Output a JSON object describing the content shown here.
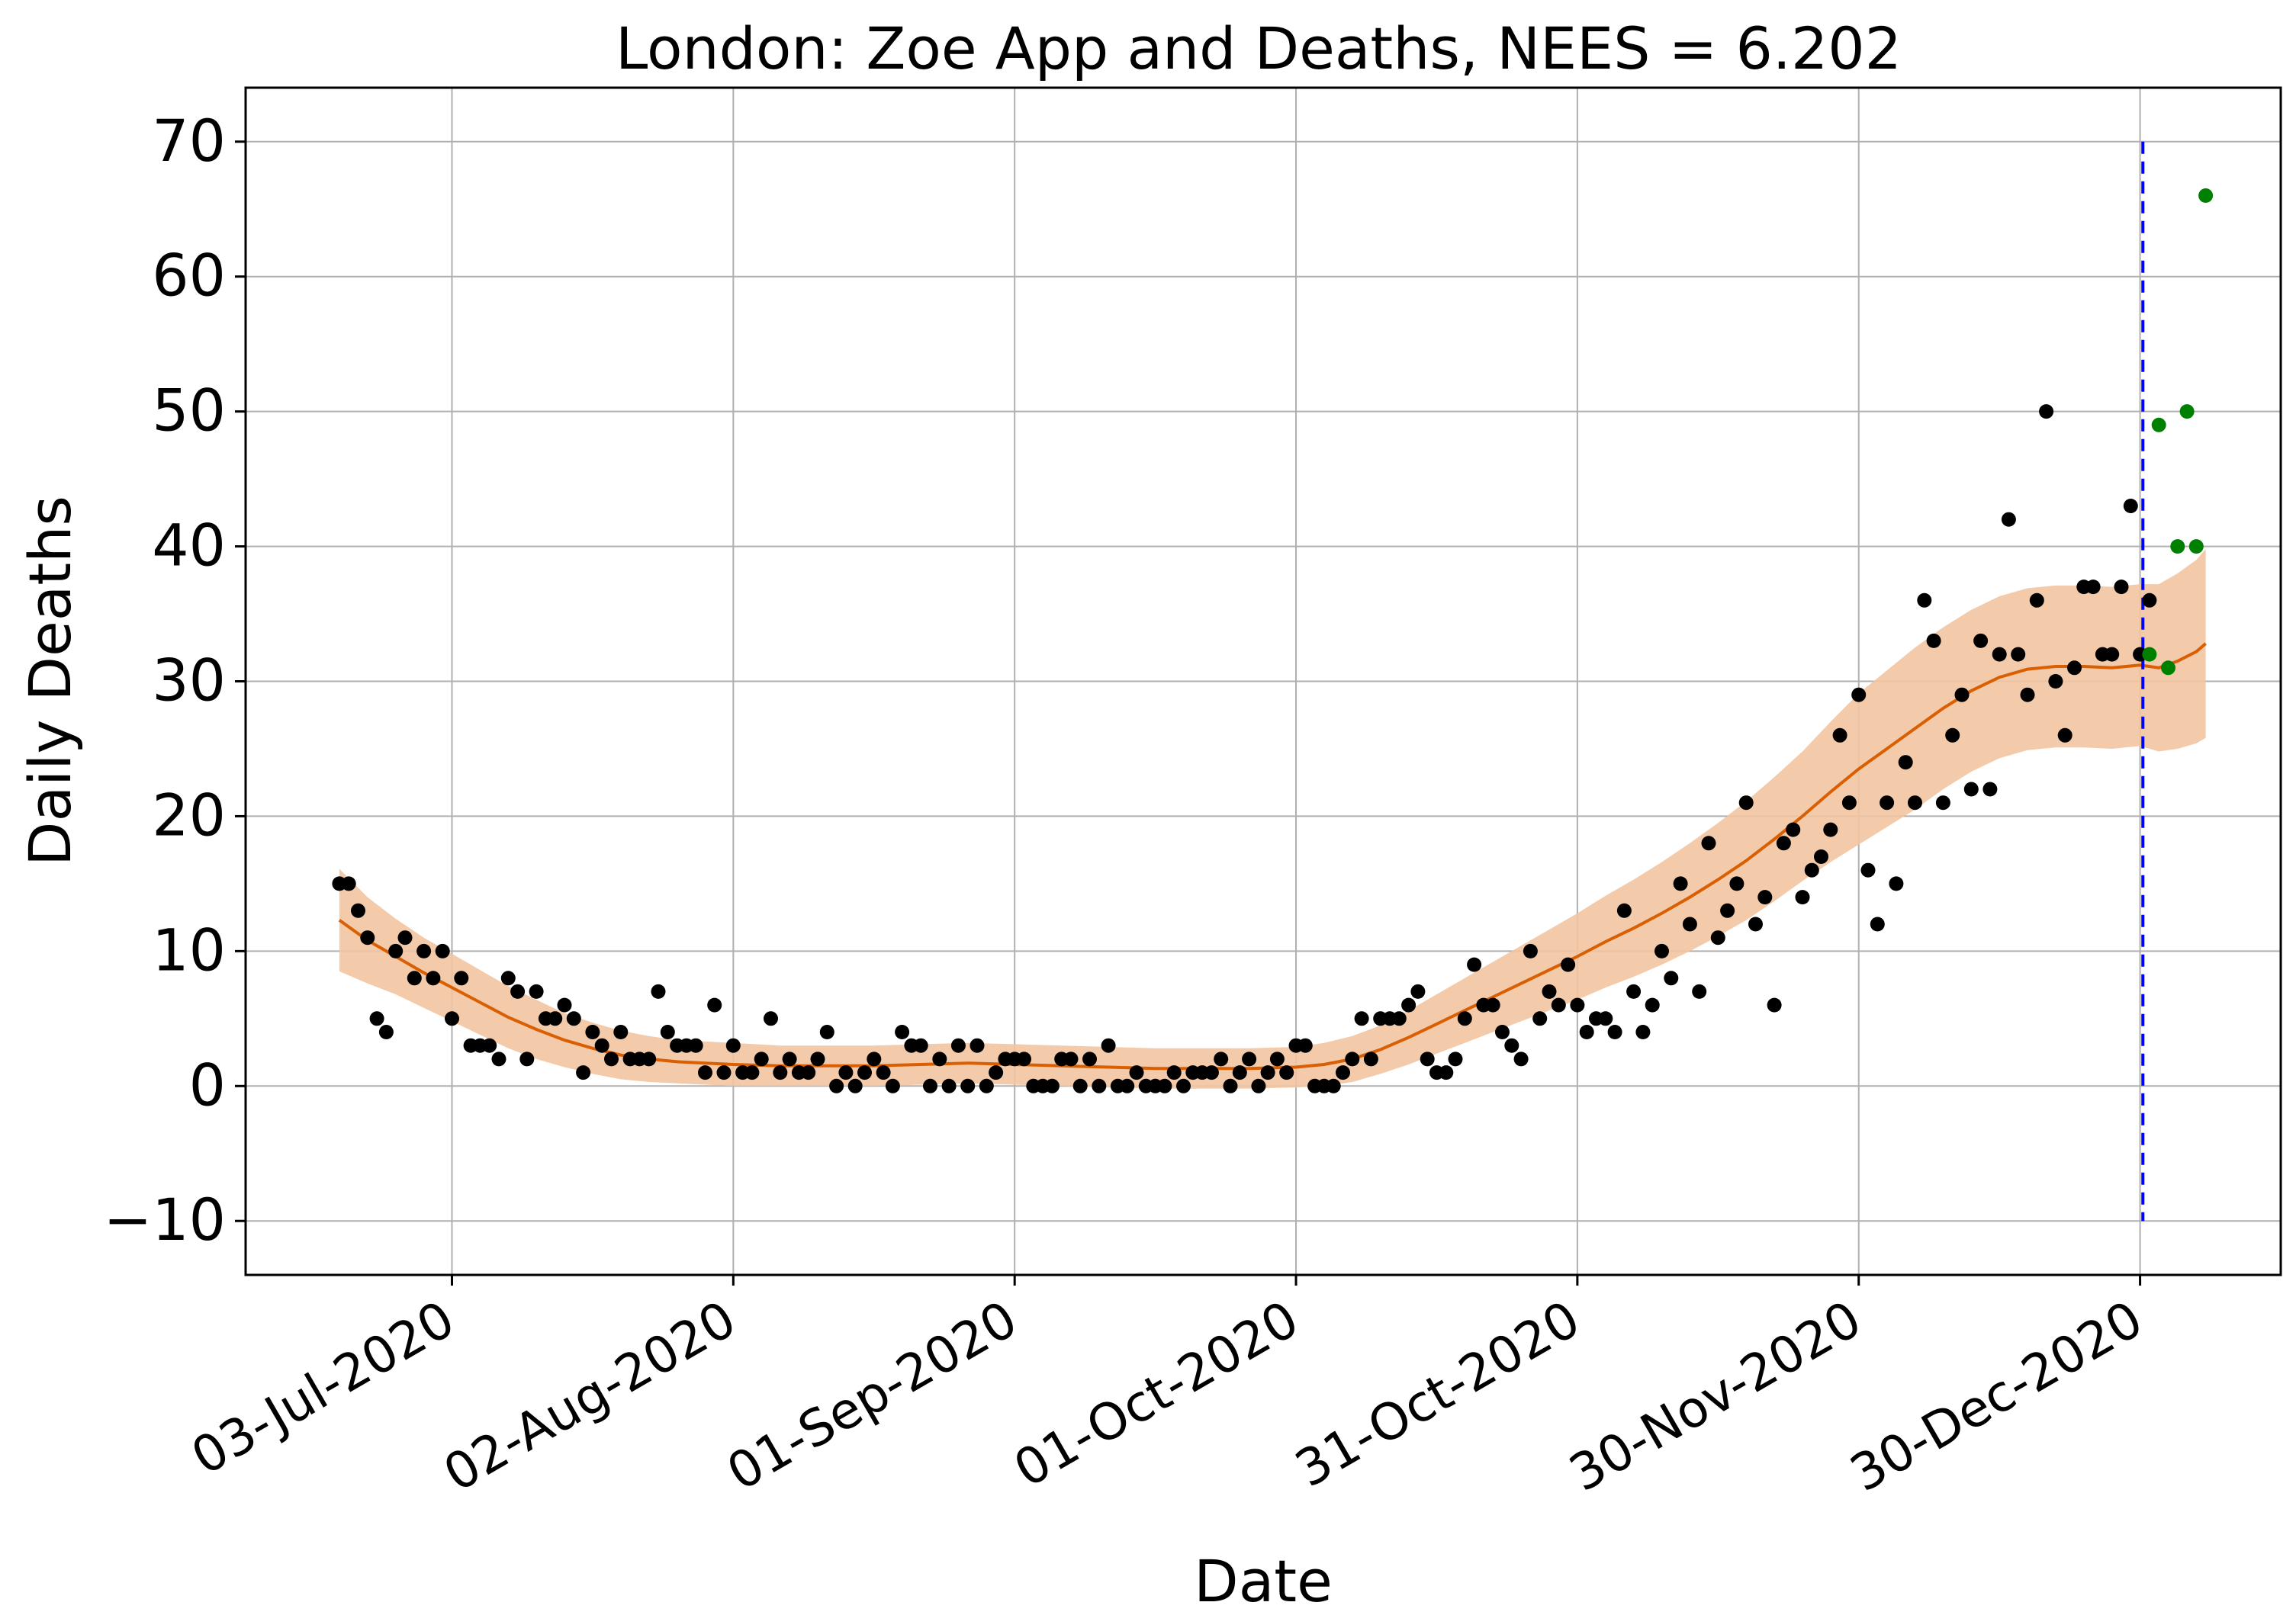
{
  "chart_data": {
    "type": "scatter",
    "title": "London: Zoe App and Deaths, NEES = 6.202",
    "xlabel": "Date",
    "ylabel": "Daily Deaths",
    "xlim": [
      -22,
      195
    ],
    "ylim": [
      -14,
      74
    ],
    "grid": true,
    "x_unit": "days since 03-Jul-2020",
    "x_ticks": [
      {
        "value": 0,
        "label": "03-Jul-2020"
      },
      {
        "value": 30,
        "label": "02-Aug-2020"
      },
      {
        "value": 60,
        "label": "01-Sep-2020"
      },
      {
        "value": 90,
        "label": "01-Oct-2020"
      },
      {
        "value": 120,
        "label": "31-Oct-2020"
      },
      {
        "value": 150,
        "label": "30-Nov-2020"
      },
      {
        "value": 180,
        "label": "30-Dec-2020"
      }
    ],
    "y_ticks": [
      {
        "value": -10,
        "label": "−10"
      },
      {
        "value": 0,
        "label": "0"
      },
      {
        "value": 10,
        "label": "10"
      },
      {
        "value": 20,
        "label": "20"
      },
      {
        "value": 30,
        "label": "30"
      },
      {
        "value": 40,
        "label": "40"
      },
      {
        "value": 50,
        "label": "50"
      },
      {
        "value": 60,
        "label": "60"
      },
      {
        "value": 70,
        "label": "70"
      }
    ],
    "colors": {
      "observed": "#000000",
      "future": "#008000",
      "estimate": "#d95f02",
      "band": "#f2c4a1",
      "forecast_line": "#0000ff",
      "grid": "#b0b0b0"
    },
    "forecast_start_x": 180.3,
    "forecast_line_range": [
      -10,
      70
    ],
    "observed": [
      [
        -12,
        15
      ],
      [
        -11,
        15
      ],
      [
        -10,
        13
      ],
      [
        -9,
        11
      ],
      [
        -8,
        5
      ],
      [
        -7,
        4
      ],
      [
        -6,
        10
      ],
      [
        -5,
        11
      ],
      [
        -4,
        8
      ],
      [
        -3,
        10
      ],
      [
        -2,
        8
      ],
      [
        -1,
        10
      ],
      [
        0,
        5
      ],
      [
        1,
        8
      ],
      [
        2,
        3
      ],
      [
        3,
        3
      ],
      [
        4,
        3
      ],
      [
        5,
        2
      ],
      [
        6,
        8
      ],
      [
        7,
        7
      ],
      [
        8,
        2
      ],
      [
        9,
        7
      ],
      [
        10,
        5
      ],
      [
        11,
        5
      ],
      [
        12,
        6
      ],
      [
        13,
        5
      ],
      [
        14,
        1
      ],
      [
        15,
        4
      ],
      [
        16,
        3
      ],
      [
        17,
        2
      ],
      [
        18,
        4
      ],
      [
        19,
        2
      ],
      [
        20,
        2
      ],
      [
        21,
        2
      ],
      [
        22,
        7
      ],
      [
        23,
        4
      ],
      [
        24,
        3
      ],
      [
        25,
        3
      ],
      [
        26,
        3
      ],
      [
        27,
        1
      ],
      [
        28,
        6
      ],
      [
        29,
        1
      ],
      [
        30,
        3
      ],
      [
        31,
        1
      ],
      [
        32,
        1
      ],
      [
        33,
        2
      ],
      [
        34,
        5
      ],
      [
        35,
        1
      ],
      [
        36,
        2
      ],
      [
        37,
        1
      ],
      [
        38,
        1
      ],
      [
        39,
        2
      ],
      [
        40,
        4
      ],
      [
        41,
        0
      ],
      [
        42,
        1
      ],
      [
        43,
        0
      ],
      [
        44,
        1
      ],
      [
        45,
        2
      ],
      [
        46,
        1
      ],
      [
        47,
        0
      ],
      [
        48,
        4
      ],
      [
        49,
        3
      ],
      [
        50,
        3
      ],
      [
        51,
        0
      ],
      [
        52,
        2
      ],
      [
        53,
        0
      ],
      [
        54,
        3
      ],
      [
        55,
        0
      ],
      [
        56,
        3
      ],
      [
        57,
        0
      ],
      [
        58,
        1
      ],
      [
        59,
        2
      ],
      [
        60,
        2
      ],
      [
        61,
        2
      ],
      [
        62,
        0
      ],
      [
        63,
        0
      ],
      [
        64,
        0
      ],
      [
        65,
        2
      ],
      [
        66,
        2
      ],
      [
        67,
        0
      ],
      [
        68,
        2
      ],
      [
        69,
        0
      ],
      [
        70,
        3
      ],
      [
        71,
        0
      ],
      [
        72,
        0
      ],
      [
        73,
        1
      ],
      [
        74,
        0
      ],
      [
        75,
        0
      ],
      [
        76,
        0
      ],
      [
        77,
        1
      ],
      [
        78,
        0
      ],
      [
        79,
        1
      ],
      [
        80,
        1
      ],
      [
        81,
        1
      ],
      [
        82,
        2
      ],
      [
        83,
        0
      ],
      [
        84,
        1
      ],
      [
        85,
        2
      ],
      [
        86,
        0
      ],
      [
        87,
        1
      ],
      [
        88,
        2
      ],
      [
        89,
        1
      ],
      [
        90,
        3
      ],
      [
        91,
        3
      ],
      [
        92,
        0
      ],
      [
        93,
        0
      ],
      [
        94,
        0
      ],
      [
        95,
        1
      ],
      [
        96,
        2
      ],
      [
        97,
        5
      ],
      [
        98,
        2
      ],
      [
        99,
        5
      ],
      [
        100,
        5
      ],
      [
        101,
        5
      ],
      [
        102,
        6
      ],
      [
        103,
        7
      ],
      [
        104,
        2
      ],
      [
        105,
        1
      ],
      [
        106,
        1
      ],
      [
        107,
        2
      ],
      [
        108,
        5
      ],
      [
        109,
        9
      ],
      [
        110,
        6
      ],
      [
        111,
        6
      ],
      [
        112,
        4
      ],
      [
        113,
        3
      ],
      [
        114,
        2
      ],
      [
        115,
        10
      ],
      [
        116,
        5
      ],
      [
        117,
        7
      ],
      [
        118,
        6
      ],
      [
        119,
        9
      ],
      [
        120,
        6
      ],
      [
        121,
        4
      ],
      [
        122,
        5
      ],
      [
        123,
        5
      ],
      [
        124,
        4
      ],
      [
        125,
        13
      ],
      [
        126,
        7
      ],
      [
        127,
        4
      ],
      [
        128,
        6
      ],
      [
        129,
        10
      ],
      [
        130,
        8
      ],
      [
        131,
        15
      ],
      [
        132,
        12
      ],
      [
        133,
        7
      ],
      [
        134,
        18
      ],
      [
        135,
        11
      ],
      [
        136,
        13
      ],
      [
        137,
        15
      ],
      [
        138,
        21
      ],
      [
        139,
        12
      ],
      [
        140,
        14
      ],
      [
        141,
        6
      ],
      [
        142,
        18
      ],
      [
        143,
        19
      ],
      [
        144,
        14
      ],
      [
        145,
        16
      ],
      [
        146,
        17
      ],
      [
        147,
        19
      ],
      [
        148,
        26
      ],
      [
        149,
        21
      ],
      [
        150,
        29
      ],
      [
        151,
        16
      ],
      [
        152,
        12
      ],
      [
        153,
        21
      ],
      [
        154,
        15
      ],
      [
        155,
        24
      ],
      [
        156,
        21
      ],
      [
        157,
        36
      ],
      [
        158,
        33
      ],
      [
        159,
        21
      ],
      [
        160,
        26
      ],
      [
        161,
        29
      ],
      [
        162,
        22
      ],
      [
        163,
        33
      ],
      [
        164,
        22
      ],
      [
        165,
        32
      ],
      [
        166,
        42
      ],
      [
        167,
        32
      ],
      [
        168,
        29
      ],
      [
        169,
        36
      ],
      [
        170,
        50
      ],
      [
        171,
        30
      ],
      [
        172,
        26
      ],
      [
        173,
        31
      ],
      [
        174,
        37
      ],
      [
        175,
        37
      ],
      [
        176,
        32
      ],
      [
        177,
        32
      ],
      [
        178,
        37
      ],
      [
        179,
        43
      ],
      [
        180,
        32
      ],
      [
        181,
        36
      ]
    ],
    "future": [
      [
        181,
        32
      ],
      [
        182,
        49
      ],
      [
        183,
        31
      ],
      [
        184,
        40
      ],
      [
        185,
        50
      ],
      [
        186,
        40
      ],
      [
        187,
        66
      ]
    ],
    "estimate_x": [
      -12,
      -9,
      -6,
      -3,
      0,
      3,
      6,
      9,
      12,
      15,
      18,
      21,
      24,
      27,
      30,
      35,
      40,
      45,
      50,
      55,
      60,
      65,
      70,
      75,
      80,
      85,
      90,
      93,
      96,
      99,
      102,
      105,
      108,
      111,
      114,
      117,
      120,
      123,
      126,
      129,
      132,
      135,
      138,
      141,
      144,
      147,
      150,
      153,
      156,
      159,
      162,
      165,
      168,
      171,
      174,
      177,
      180,
      182,
      184,
      186,
      187
    ],
    "estimate_y": [
      12.3,
      10.8,
      9.6,
      8.4,
      7.3,
      6.2,
      5.1,
      4.2,
      3.4,
      2.8,
      2.3,
      2.0,
      1.8,
      1.7,
      1.6,
      1.5,
      1.5,
      1.5,
      1.6,
      1.7,
      1.6,
      1.5,
      1.4,
      1.3,
      1.3,
      1.3,
      1.4,
      1.6,
      2.0,
      2.7,
      3.6,
      4.6,
      5.6,
      6.6,
      7.6,
      8.6,
      9.6,
      10.7,
      11.7,
      12.8,
      14.0,
      15.3,
      16.7,
      18.3,
      20.0,
      21.8,
      23.5,
      25.0,
      26.5,
      28.0,
      29.3,
      30.3,
      30.9,
      31.1,
      31.1,
      31.0,
      31.2,
      31.0,
      31.5,
      32.2,
      32.8
    ],
    "band_half_width": [
      3.8,
      3.2,
      2.8,
      2.6,
      2.5,
      2.4,
      2.3,
      2.2,
      2.0,
      1.9,
      1.8,
      1.7,
      1.6,
      1.6,
      1.6,
      1.5,
      1.5,
      1.5,
      1.5,
      1.5,
      1.5,
      1.5,
      1.5,
      1.5,
      1.5,
      1.5,
      1.5,
      1.6,
      1.7,
      1.8,
      2.0,
      2.2,
      2.4,
      2.6,
      2.8,
      3.0,
      3.2,
      3.4,
      3.6,
      3.8,
      4.0,
      4.2,
      4.4,
      4.6,
      4.8,
      5.2,
      5.6,
      5.8,
      6.0,
      6.0,
      6.0,
      6.0,
      6.0,
      6.0,
      6.0,
      6.0,
      6.0,
      6.2,
      6.5,
      6.8,
      7.0
    ]
  }
}
